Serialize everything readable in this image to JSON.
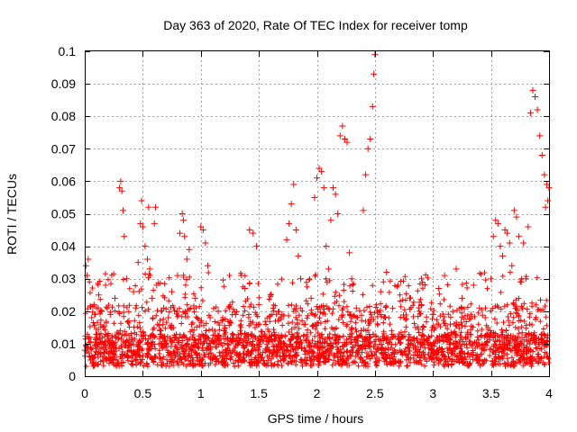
{
  "chart_data": {
    "type": "scatter",
    "title": "Day 363 of 2020, Rate Of TEC Index for receiver tomp",
    "xlabel": "GPS time / hours",
    "ylabel": "ROTI / TECUs",
    "xlim": [
      0,
      4
    ],
    "ylim": [
      0,
      0.1
    ],
    "grid": true,
    "marker": "+",
    "color": "#ff0000",
    "xticks": [
      {
        "value": 0,
        "label": "0"
      },
      {
        "value": 0.5,
        "label": "0.5"
      },
      {
        "value": 1,
        "label": "1"
      },
      {
        "value": 1.5,
        "label": "1.5"
      },
      {
        "value": 2,
        "label": "2"
      },
      {
        "value": 2.5,
        "label": "2.5"
      },
      {
        "value": 3,
        "label": "3"
      },
      {
        "value": 3.5,
        "label": "3.5"
      },
      {
        "value": 4,
        "label": "4"
      }
    ],
    "yticks": [
      {
        "value": 0,
        "label": "0"
      },
      {
        "value": 0.01,
        "label": "0.01"
      },
      {
        "value": 0.02,
        "label": "0.02"
      },
      {
        "value": 0.03,
        "label": "0.03"
      },
      {
        "value": 0.04,
        "label": "0.04"
      },
      {
        "value": 0.05,
        "label": "0.05"
      },
      {
        "value": 0.06,
        "label": "0.06"
      },
      {
        "value": 0.07,
        "label": "0.07"
      },
      {
        "value": 0.08,
        "label": "0.08"
      },
      {
        "value": 0.09,
        "label": "0.09"
      },
      {
        "value": 0.1,
        "label": "0.1"
      }
    ],
    "series": [
      {
        "name": "ROTI",
        "note": "representative subset of points read from the plot",
        "points": [
          [
            0.0,
            0.008
          ],
          [
            0.01,
            0.034
          ],
          [
            0.02,
            0.031
          ],
          [
            0.03,
            0.036
          ],
          [
            0.04,
            0.012
          ],
          [
            0.05,
            0.005
          ],
          [
            0.06,
            0.018
          ],
          [
            0.08,
            0.022
          ],
          [
            0.1,
            0.009
          ],
          [
            0.12,
            0.025
          ],
          [
            0.14,
            0.007
          ],
          [
            0.16,
            0.015
          ],
          [
            0.18,
            0.028
          ],
          [
            0.2,
            0.011
          ],
          [
            0.22,
            0.019
          ],
          [
            0.24,
            0.006
          ],
          [
            0.26,
            0.024
          ],
          [
            0.28,
            0.013
          ],
          [
            0.3,
            0.058
          ],
          [
            0.31,
            0.06
          ],
          [
            0.32,
            0.057
          ],
          [
            0.33,
            0.051
          ],
          [
            0.34,
            0.043
          ],
          [
            0.36,
            0.03
          ],
          [
            0.38,
            0.017
          ],
          [
            0.4,
            0.008
          ],
          [
            0.42,
            0.026
          ],
          [
            0.44,
            0.021
          ],
          [
            0.46,
            0.035
          ],
          [
            0.48,
            0.047
          ],
          [
            0.49,
            0.054
          ],
          [
            0.5,
            0.046
          ],
          [
            0.52,
            0.04
          ],
          [
            0.54,
            0.036
          ],
          [
            0.55,
            0.052
          ],
          [
            0.56,
            0.033
          ],
          [
            0.58,
            0.024
          ],
          [
            0.6,
            0.047
          ],
          [
            0.61,
            0.052
          ],
          [
            0.62,
            0.028
          ],
          [
            0.65,
            0.014
          ],
          [
            0.68,
            0.021
          ],
          [
            0.7,
            0.009
          ],
          [
            0.72,
            0.018
          ],
          [
            0.75,
            0.026
          ],
          [
            0.78,
            0.012
          ],
          [
            0.8,
            0.031
          ],
          [
            0.82,
            0.044
          ],
          [
            0.84,
            0.05
          ],
          [
            0.85,
            0.048
          ],
          [
            0.86,
            0.043
          ],
          [
            0.88,
            0.036
          ],
          [
            0.9,
            0.039
          ],
          [
            0.92,
            0.016
          ],
          [
            0.95,
            0.024
          ],
          [
            0.98,
            0.01
          ],
          [
            1.0,
            0.046
          ],
          [
            1.02,
            0.045
          ],
          [
            1.04,
            0.041
          ],
          [
            1.06,
            0.034
          ],
          [
            1.08,
            0.018
          ],
          [
            1.1,
            0.011
          ],
          [
            1.15,
            0.02
          ],
          [
            1.2,
            0.014
          ],
          [
            1.25,
            0.008
          ],
          [
            1.3,
            0.019
          ],
          [
            1.35,
            0.031
          ],
          [
            1.38,
            0.027
          ],
          [
            1.42,
            0.045
          ],
          [
            1.45,
            0.044
          ],
          [
            1.48,
            0.04
          ],
          [
            1.5,
            0.022
          ],
          [
            1.55,
            0.013
          ],
          [
            1.6,
            0.025
          ],
          [
            1.65,
            0.009
          ],
          [
            1.7,
            0.019
          ],
          [
            1.74,
            0.042
          ],
          [
            1.76,
            0.047
          ],
          [
            1.78,
            0.053
          ],
          [
            1.8,
            0.059
          ],
          [
            1.82,
            0.045
          ],
          [
            1.84,
            0.037
          ],
          [
            1.86,
            0.03
          ],
          [
            1.9,
            0.016
          ],
          [
            1.95,
            0.024
          ],
          [
            1.98,
            0.055
          ],
          [
            2.0,
            0.061
          ],
          [
            2.02,
            0.064
          ],
          [
            2.04,
            0.063
          ],
          [
            2.06,
            0.058
          ],
          [
            2.08,
            0.04
          ],
          [
            2.1,
            0.033
          ],
          [
            2.12,
            0.048
          ],
          [
            2.14,
            0.058
          ],
          [
            2.16,
            0.056
          ],
          [
            2.18,
            0.05
          ],
          [
            2.2,
            0.074
          ],
          [
            2.22,
            0.077
          ],
          [
            2.24,
            0.073
          ],
          [
            2.26,
            0.072
          ],
          [
            2.28,
            0.038
          ],
          [
            2.3,
            0.03
          ],
          [
            2.34,
            0.021
          ],
          [
            2.38,
            0.014
          ],
          [
            2.4,
            0.051
          ],
          [
            2.42,
            0.062
          ],
          [
            2.44,
            0.07
          ],
          [
            2.46,
            0.073
          ],
          [
            2.48,
            0.083
          ],
          [
            2.49,
            0.093
          ],
          [
            2.5,
            0.099
          ],
          [
            2.52,
            0.02
          ],
          [
            2.55,
            0.026
          ],
          [
            2.6,
            0.032
          ],
          [
            2.65,
            0.012
          ],
          [
            2.7,
            0.028
          ],
          [
            2.75,
            0.018
          ],
          [
            2.8,
            0.024
          ],
          [
            2.85,
            0.015
          ],
          [
            2.9,
            0.022
          ],
          [
            2.95,
            0.011
          ],
          [
            3.0,
            0.019
          ],
          [
            3.05,
            0.027
          ],
          [
            3.1,
            0.031
          ],
          [
            3.15,
            0.016
          ],
          [
            3.2,
            0.033
          ],
          [
            3.25,
            0.024
          ],
          [
            3.3,
            0.013
          ],
          [
            3.35,
            0.028
          ],
          [
            3.4,
            0.021
          ],
          [
            3.45,
            0.018
          ],
          [
            3.5,
            0.03
          ],
          [
            3.52,
            0.043
          ],
          [
            3.54,
            0.048
          ],
          [
            3.56,
            0.047
          ],
          [
            3.58,
            0.04
          ],
          [
            3.6,
            0.037
          ],
          [
            3.62,
            0.045
          ],
          [
            3.64,
            0.044
          ],
          [
            3.66,
            0.041
          ],
          [
            3.68,
            0.034
          ],
          [
            3.7,
            0.051
          ],
          [
            3.72,
            0.049
          ],
          [
            3.74,
            0.043
          ],
          [
            3.76,
            0.029
          ],
          [
            3.78,
            0.041
          ],
          [
            3.8,
            0.03
          ],
          [
            3.82,
            0.046
          ],
          [
            3.84,
            0.081
          ],
          [
            3.86,
            0.088
          ],
          [
            3.88,
            0.086
          ],
          [
            3.9,
            0.082
          ],
          [
            3.92,
            0.074
          ],
          [
            3.94,
            0.068
          ],
          [
            3.96,
            0.062
          ],
          [
            3.97,
            0.052
          ],
          [
            3.98,
            0.059
          ],
          [
            3.99,
            0.054
          ],
          [
            4.0,
            0.058
          ]
        ]
      }
    ]
  }
}
